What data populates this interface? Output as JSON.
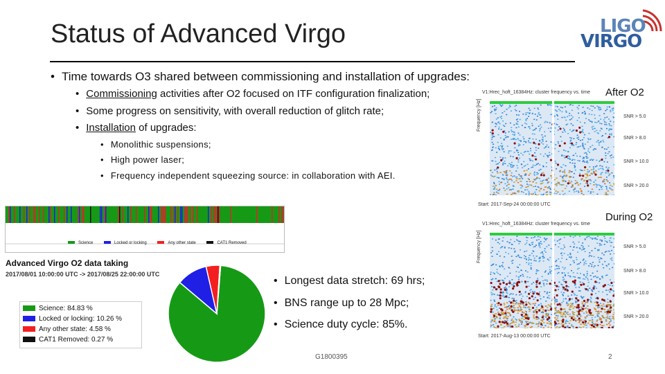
{
  "slide": {
    "title": "Status of Advanced Virgo",
    "logo": {
      "line1": "LIGO",
      "line2": "VIRGO"
    },
    "bullet_main": "Time towards O3 shared between commissioning and installation of upgrades:",
    "sub_bullets": [
      {
        "underlined": "Commissioning",
        "rest": " activities after O2 focused on ITF configuration finalization;"
      },
      {
        "underlined": "",
        "rest": "Some progress on sensitivity, with overall reduction of glitch rate;"
      },
      {
        "underlined": "Installation",
        "rest": " of upgrades:"
      }
    ],
    "subsub_bullets": [
      "Monolithic suspensions;",
      "High power laser;",
      "Frequency independent squeezing source: in collaboration with AEI."
    ],
    "after_label": "After O2",
    "during_label": "During O2",
    "plot_after": {
      "title": "V1:Hrec_hoft_16384Hz: cluster frequency vs. time",
      "ylabel": "Frequency [Hz]",
      "start": "Start: 2017-Sep-24 00:00:00 UTC",
      "legend": [
        "SNR > 5.0",
        "SNR > 8.0",
        "SNR > 10.0",
        "SNR > 20.0"
      ]
    },
    "plot_during": {
      "title": "V1:Hrec_hoft_16384Hz: cluster frequency vs. time",
      "ylabel": "Frequency [Hz]",
      "start": "Start: 2017-Aug-13 00:00:00 UTC",
      "legend": [
        "SNR > 5.0",
        "SNR > 8.0",
        "SNR > 10.0",
        "SNR > 20.0"
      ]
    },
    "status_legend": [
      "Science",
      "Locked or locking",
      "Any other state",
      "CAT1 Removed"
    ],
    "data_taking": {
      "title": "Advanced Virgo O2 data taking",
      "range": "2017/08/01 10:00:00 UTC -> 2017/08/25 22:00:00 UTC"
    },
    "big_bullets": [
      "Longest data stretch: 69 hrs;",
      "BNS range up to 28 Mpc;",
      "Science duty cycle: 85%."
    ],
    "footer_id": "G1800395",
    "page_number": "2"
  },
  "chart_data": {
    "type": "pie",
    "title": "Advanced Virgo O2 data taking",
    "labels": [
      "Science: 84.83 %",
      "Locked or locking: 10.26 %",
      "Any other state: 4.58 %",
      "CAT1 Removed: 0.27 %"
    ],
    "values": [
      84.83,
      10.26,
      4.58,
      0.27
    ],
    "colors": [
      "#169a16",
      "#1f1fe6",
      "#f41f1f",
      "#111111"
    ]
  }
}
